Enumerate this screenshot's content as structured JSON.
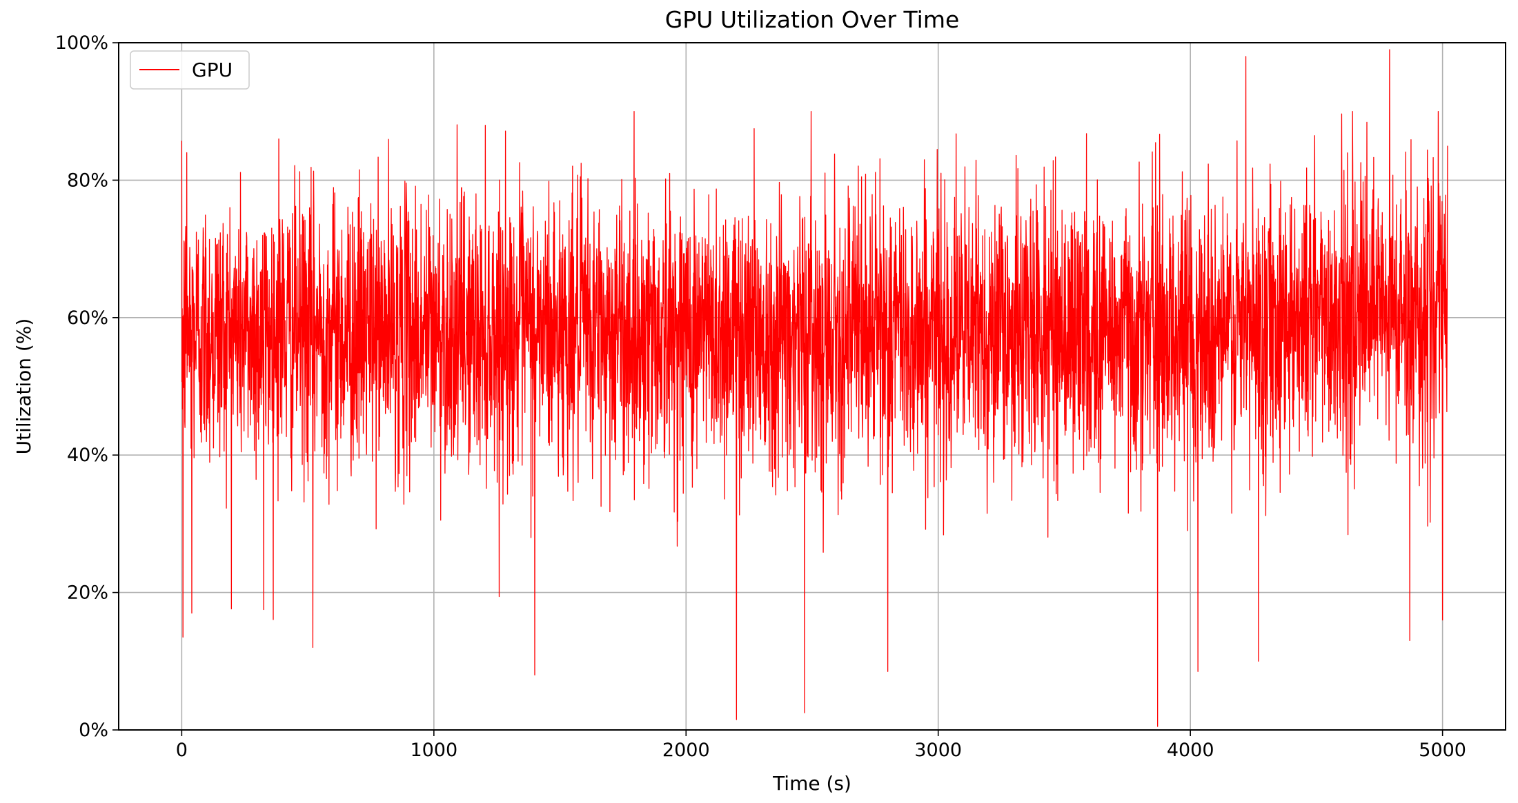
{
  "chart_data": {
    "type": "line",
    "title": "GPU Utilization Over Time",
    "xlabel": "Time (s)",
    "ylabel": "Utilization (%)",
    "xlim": [
      -250,
      5250
    ],
    "ylim": [
      0,
      100
    ],
    "x_ticks": [
      0,
      1000,
      2000,
      3000,
      4000,
      5000
    ],
    "x_tick_labels": [
      "0",
      "1000",
      "2000",
      "3000",
      "4000",
      "5000"
    ],
    "y_ticks": [
      0,
      20,
      40,
      60,
      80,
      100
    ],
    "y_tick_labels": [
      "0%",
      "20%",
      "40%",
      "60%",
      "80%",
      "100%"
    ],
    "grid": true,
    "legend": {
      "position": "top-left",
      "entries": [
        "GPU"
      ]
    },
    "series": [
      {
        "name": "GPU",
        "color": "#ff0000",
        "x_range": [
          0,
          5020
        ],
        "mean": 58,
        "typical_band": [
          40,
          75
        ],
        "notable_points": [
          {
            "x": 5,
            "y": 13.5
          },
          {
            "x": 20,
            "y": 84
          },
          {
            "x": 40,
            "y": 17
          },
          {
            "x": 325,
            "y": 17.5
          },
          {
            "x": 385,
            "y": 86
          },
          {
            "x": 520,
            "y": 12
          },
          {
            "x": 1400,
            "y": 8
          },
          {
            "x": 2200,
            "y": 1.5
          },
          {
            "x": 2270,
            "y": 87.5
          },
          {
            "x": 2470,
            "y": 2.5
          },
          {
            "x": 2800,
            "y": 8.5
          },
          {
            "x": 3870,
            "y": 0.5
          },
          {
            "x": 4030,
            "y": 8.5
          },
          {
            "x": 4220,
            "y": 98
          },
          {
            "x": 4270,
            "y": 10
          },
          {
            "x": 4790,
            "y": 99
          },
          {
            "x": 4870,
            "y": 13
          },
          {
            "x": 5000,
            "y": 16
          },
          {
            "x": 5020,
            "y": 85
          }
        ]
      }
    ]
  }
}
